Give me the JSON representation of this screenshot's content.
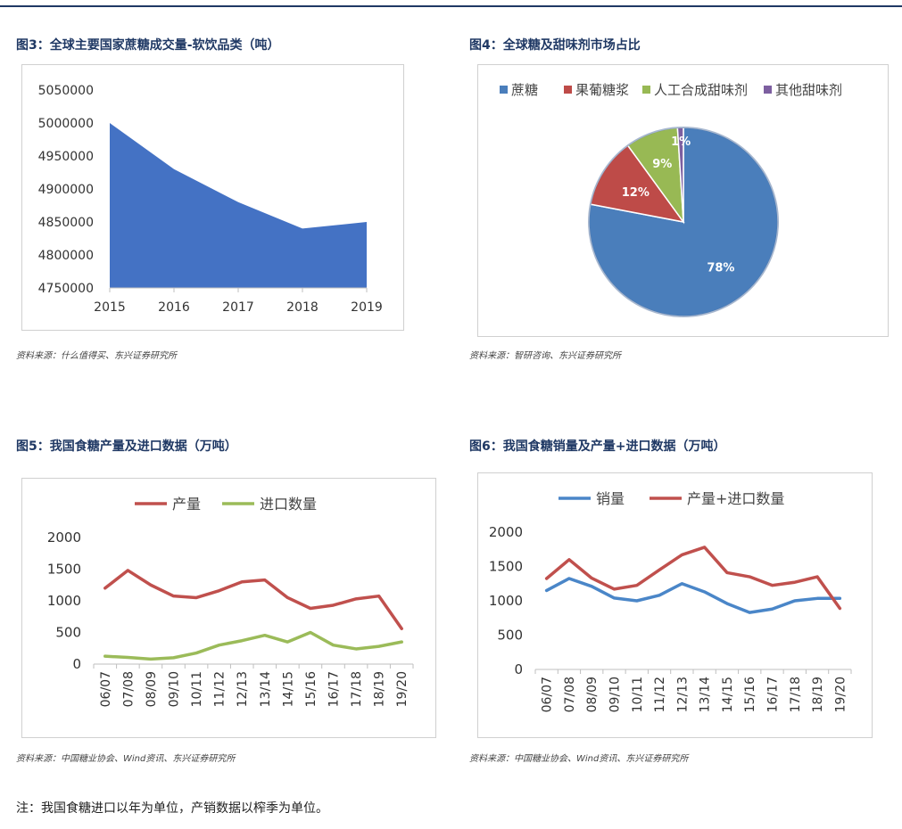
{
  "figures": {
    "fig3": {
      "title": "图3：全球主要国家蔗糖成交量-软饮品类（吨）",
      "source": "资料来源：什么值得买、东兴证券研究所"
    },
    "fig4": {
      "title": "图4：全球糖及甜味剂市场占比",
      "source": "资料来源：智研咨询、东兴证券研究所"
    },
    "fig5": {
      "title": "图5：我国食糖产量及进口数据（万吨）",
      "source": "资料来源：中国糖业协会、Wind资讯、东兴证券研究所"
    },
    "fig6": {
      "title": "图6：我国食糖销量及产量+进口数据（万吨）",
      "source": "资料来源：中国糖业协会、Wind资讯、东兴证券研究所"
    }
  },
  "note": "注：我国食糖进口以年为单位，产销数据以榨季为单位。",
  "chart_data": [
    {
      "type": "area",
      "title": "全球主要国家蔗糖成交量-软饮品类（吨）",
      "x": [
        "2015",
        "2016",
        "2017",
        "2018",
        "2019"
      ],
      "values": [
        5000000,
        4930000,
        4880000,
        4840000,
        4850000
      ],
      "ylim": [
        4750000,
        5050000
      ],
      "yticks": [
        4750000,
        4800000,
        4850000,
        4900000,
        4950000,
        5000000,
        5050000
      ],
      "color": "#4472c4"
    },
    {
      "type": "pie",
      "title": "全球糖及甜味剂市场占比",
      "labels": [
        "蔗糖",
        "果葡糖浆",
        "人工合成甜味剂",
        "其他甜味剂"
      ],
      "values": [
        78,
        12,
        9,
        1
      ],
      "data_labels": [
        "78%",
        "12%",
        "9%",
        "1%"
      ],
      "colors": [
        "#4a7ebb",
        "#be4b48",
        "#98b954",
        "#7d5fa0"
      ]
    },
    {
      "type": "line",
      "title": "我国食糖产量及进口数据（万吨）",
      "categories": [
        "06/07",
        "07/08",
        "08/09",
        "09/10",
        "10/11",
        "11/12",
        "12/13",
        "13/14",
        "14/15",
        "15/16",
        "16/17",
        "17/18",
        "18/19",
        "19/20"
      ],
      "series": [
        {
          "name": "产量",
          "color": "#c0504d",
          "values": [
            1200,
            1480,
            1250,
            1075,
            1050,
            1160,
            1300,
            1330,
            1050,
            880,
            930,
            1030,
            1075,
            560
          ]
        },
        {
          "name": "进口数量",
          "color": "#9bbb59",
          "values": [
            125,
            105,
            80,
            100,
            175,
            300,
            370,
            455,
            350,
            500,
            300,
            240,
            280,
            350
          ]
        }
      ],
      "ylim": [
        0,
        2000
      ],
      "yticks": [
        0,
        500,
        1000,
        1500,
        2000
      ]
    },
    {
      "type": "line",
      "title": "我国食糖销量及产量+进口数据（万吨）",
      "categories": [
        "06/07",
        "07/08",
        "08/09",
        "09/10",
        "10/11",
        "11/12",
        "12/13",
        "13/14",
        "14/15",
        "15/16",
        "16/17",
        "17/18",
        "18/19",
        "19/20"
      ],
      "series": [
        {
          "name": "销量",
          "color": "#4a86c8",
          "values": [
            1150,
            1325,
            1210,
            1040,
            1000,
            1080,
            1250,
            1130,
            960,
            830,
            880,
            1000,
            1035,
            1035
          ]
        },
        {
          "name": "产量+进口数量",
          "color": "#c0504d",
          "values": [
            1325,
            1600,
            1330,
            1170,
            1225,
            1450,
            1670,
            1780,
            1410,
            1350,
            1225,
            1270,
            1350,
            890
          ]
        }
      ],
      "ylim": [
        0,
        2000
      ],
      "yticks": [
        0,
        500,
        1000,
        1500,
        2000
      ]
    }
  ]
}
